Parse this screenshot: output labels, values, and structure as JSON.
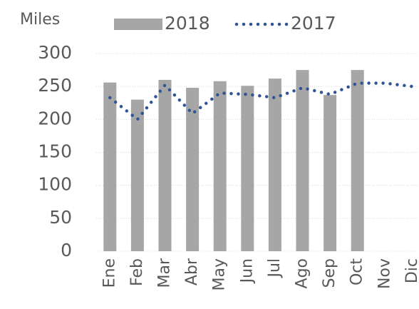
{
  "chart_data": {
    "type": "bar_line",
    "y_label": "Miles",
    "categories": [
      "Ene",
      "Feb",
      "Mar",
      "Abr",
      "May",
      "Jun",
      "Jul",
      "Ago",
      "Sep",
      "Oct",
      "Nov",
      "Dic"
    ],
    "series": [
      {
        "name": "2018",
        "type": "bar",
        "color": "#a6a6a6",
        "values": [
          256,
          230,
          260,
          248,
          258,
          251,
          262,
          275,
          237,
          275,
          null,
          null
        ]
      },
      {
        "name": "2017",
        "type": "line",
        "color": "#2f5597",
        "values": [
          233,
          200,
          252,
          209,
          240,
          238,
          233,
          248,
          238,
          255,
          255,
          250
        ]
      }
    ],
    "ylim": [
      0,
      300
    ],
    "yticks": [
      0,
      50,
      100,
      150,
      200,
      250,
      300
    ],
    "grid": true
  }
}
